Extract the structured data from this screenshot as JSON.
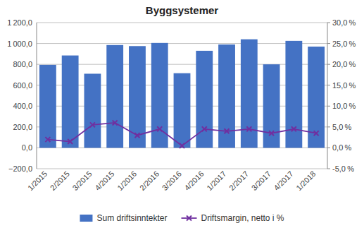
{
  "chart_data": {
    "type": "bar",
    "title": "Byggsystemer",
    "categories": [
      "1/2015",
      "2/2015",
      "3/2015",
      "4/2015",
      "1/2016",
      "2/2016",
      "3/2016",
      "4/2016",
      "1/2017",
      "2/2017",
      "3/2017",
      "4/2017",
      "1/2018"
    ],
    "series": [
      {
        "name": "Sum driftsinntekter",
        "type": "bar",
        "color": "#4472C4",
        "values": [
          795,
          885,
          710,
          985,
          975,
          1005,
          715,
          930,
          990,
          1040,
          800,
          1025,
          970
        ]
      },
      {
        "name": "Driftsmargin, netto i %",
        "type": "line",
        "color": "#7030A0",
        "marker": "x",
        "axis": "y2",
        "values": [
          2.0,
          1.5,
          5.5,
          6.0,
          3.0,
          4.5,
          0.5,
          4.5,
          4.0,
          4.5,
          3.5,
          4.5,
          3.5
        ]
      }
    ],
    "ylim": [
      -200,
      1200
    ],
    "yticks": [
      {
        "value": -200,
        "label": "−200,0"
      },
      {
        "value": 0,
        "label": "0,0"
      },
      {
        "value": 200,
        "label": "200,0"
      },
      {
        "value": 400,
        "label": "400,0"
      },
      {
        "value": 600,
        "label": "600,0"
      },
      {
        "value": 800,
        "label": "800,0"
      },
      {
        "value": 1000,
        "label": "1 000,0"
      },
      {
        "value": 1200,
        "label": "1 200,0"
      }
    ],
    "y2lim": [
      -5.0,
      30.0
    ],
    "y2ticks": [
      {
        "value": -5.0,
        "label": "-5,0 %"
      },
      {
        "value": 0.0,
        "label": "0,0 %"
      },
      {
        "value": 5.0,
        "label": "5,0 %"
      },
      {
        "value": 10.0,
        "label": "10,0 %"
      },
      {
        "value": 15.0,
        "label": "15,0 %"
      },
      {
        "value": 20.0,
        "label": "20,0 %"
      },
      {
        "value": 25.0,
        "label": "25,0 %"
      },
      {
        "value": 30.0,
        "label": "30,0 %"
      }
    ],
    "grid": true,
    "legend": "bottom"
  }
}
